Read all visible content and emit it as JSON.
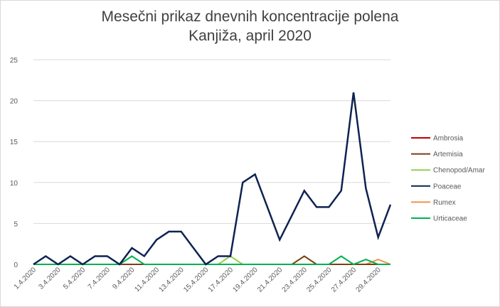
{
  "chart_data": {
    "type": "line",
    "title": "Mesečni prikaz dnevnih koncentracije polena",
    "subtitle": "Kanjiža, april 2020",
    "xlabel": "",
    "ylabel": "",
    "ylim": [
      0,
      25
    ],
    "yticks": [
      0,
      5,
      10,
      15,
      20,
      25
    ],
    "grid": "horizontal",
    "legend_position": "right",
    "x_tick_labels": [
      "1.4.2020",
      "3.4.2020",
      "5.4.2020",
      "7.4.2020",
      "9.4.2020",
      "11.4.2020",
      "13.4.2020",
      "15.4.2020",
      "17.4.2020",
      "19.4.2020",
      "21.4.2020",
      "23.4.2020",
      "25.4.2020",
      "27.4.2020",
      "29.4.2020"
    ],
    "x": [
      "1.4.2020",
      "2.4.2020",
      "3.4.2020",
      "4.4.2020",
      "5.4.2020",
      "6.4.2020",
      "7.4.2020",
      "8.4.2020",
      "9.4.2020",
      "10.4.2020",
      "11.4.2020",
      "12.4.2020",
      "13.4.2020",
      "14.4.2020",
      "15.4.2020",
      "16.4.2020",
      "17.4.2020",
      "18.4.2020",
      "19.4.2020",
      "20.4.2020",
      "21.4.2020",
      "22.4.2020",
      "23.4.2020",
      "24.4.2020",
      "25.4.2020",
      "26.4.2020",
      "27.4.2020",
      "28.4.2020",
      "29.4.2020",
      "30.4.2020"
    ],
    "series": [
      {
        "name": "Ambrosia",
        "color": "#c00000",
        "values": [
          0,
          0,
          0,
          0,
          0,
          0,
          0,
          0,
          0,
          0,
          0,
          0,
          0,
          0,
          0,
          0,
          0,
          0,
          0,
          0,
          0,
          0,
          0,
          0,
          0,
          0,
          0,
          0,
          0,
          0
        ]
      },
      {
        "name": "Artemisia",
        "color": "#7b3f14",
        "values": [
          0,
          0,
          0,
          0,
          0,
          0,
          0,
          0,
          0,
          0,
          0,
          0,
          0,
          0,
          0,
          0,
          0,
          0,
          0,
          0,
          0,
          0,
          1,
          0,
          0,
          0,
          0,
          0,
          0,
          0
        ]
      },
      {
        "name": "Chenopod/Amar",
        "color": "#92d050",
        "values": [
          0,
          0,
          0,
          0,
          0,
          0,
          0,
          0,
          0,
          0,
          0,
          0,
          0,
          0,
          0,
          0,
          1,
          0,
          0,
          0,
          0,
          0,
          0,
          0,
          0,
          0,
          0,
          0,
          0,
          0
        ]
      },
      {
        "name": "Poaceae",
        "color": "#0f2352",
        "values": [
          0,
          1,
          0,
          1,
          0,
          1,
          1,
          0,
          2,
          1,
          3,
          4,
          4,
          2,
          0,
          1,
          1,
          10,
          11,
          7,
          3,
          6,
          9,
          7,
          7,
          9,
          21,
          9.3,
          3.3,
          7.3
        ]
      },
      {
        "name": "Rumex",
        "color": "#f4914a",
        "values": [
          0,
          0,
          0,
          0,
          0,
          0,
          0,
          0,
          0,
          0,
          0,
          0,
          0,
          0,
          0,
          0,
          0,
          0,
          0,
          0,
          0,
          0,
          0,
          0,
          0,
          0,
          0,
          0,
          0.6,
          0
        ]
      },
      {
        "name": "Urticaceae",
        "color": "#00b050",
        "values": [
          0,
          0,
          0,
          0,
          0,
          0,
          0,
          0,
          1,
          0,
          0,
          0,
          0,
          0,
          0,
          0,
          0,
          0,
          0,
          0,
          0,
          0,
          0,
          0,
          0,
          1,
          0,
          0.6,
          0,
          0
        ]
      }
    ]
  }
}
